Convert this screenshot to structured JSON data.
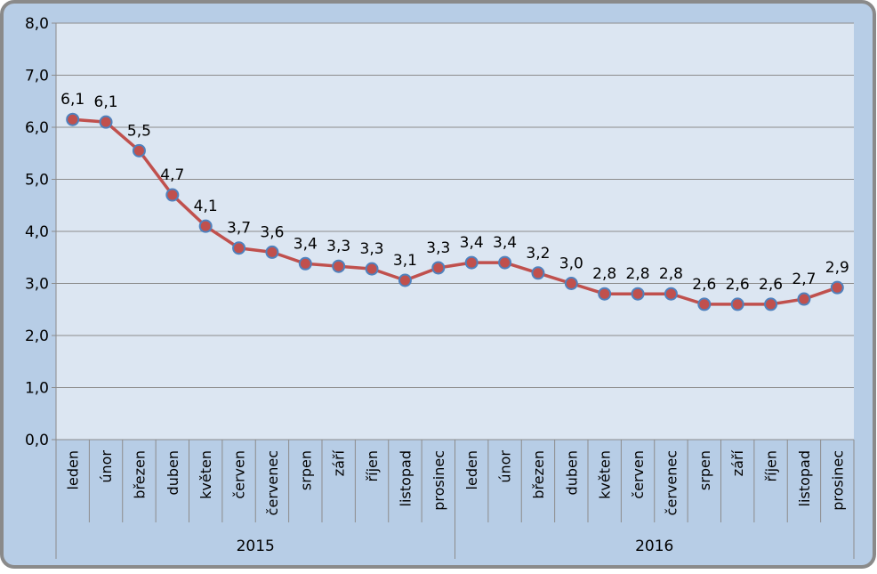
{
  "chart_data": {
    "type": "line",
    "title": "",
    "xlabel": "",
    "ylabel": "",
    "ylim": [
      0,
      8
    ],
    "yticks": [
      "0,0",
      "1,0",
      "2,0",
      "3,0",
      "4,0",
      "5,0",
      "6,0",
      "7,0",
      "8,0"
    ],
    "grid": true,
    "legend": "none",
    "categories": [
      "leden",
      "únor",
      "březen",
      "duben",
      "květen",
      "červen",
      "červenec",
      "srpen",
      "září",
      "říjen",
      "listopad",
      "prosinec",
      "leden",
      "únor",
      "březen",
      "duben",
      "květen",
      "červen",
      "červenec",
      "srpen",
      "září",
      "říjen",
      "listopad",
      "prosinec"
    ],
    "groups": [
      {
        "label": "2015",
        "count": 12
      },
      {
        "label": "2016",
        "count": 12
      }
    ],
    "series": [
      {
        "values": [
          6.15,
          6.1,
          5.55,
          4.7,
          4.1,
          3.68,
          3.6,
          3.38,
          3.33,
          3.28,
          3.06,
          3.3,
          3.4,
          3.4,
          3.2,
          3.0,
          2.8,
          2.8,
          2.8,
          2.6,
          2.6,
          2.6,
          2.7,
          2.92
        ],
        "labels": [
          "6,1",
          "6,1",
          "5,5",
          "4,7",
          "4,1",
          "3,7",
          "3,6",
          "3,4",
          "3,3",
          "3,3",
          "3,1",
          "3,3",
          "3,4",
          "3,4",
          "3,2",
          "3,0",
          "2,8",
          "2,8",
          "2,8",
          "2,6",
          "2,6",
          "2,6",
          "2,7",
          "2,9"
        ]
      }
    ],
    "colors": {
      "frame_outer": "#8a8a8a",
      "frame_fill": "#b7cde6",
      "plot_fill": "#dce6f2",
      "line": "#c0504d",
      "marker_fill": "#c0504d",
      "marker_edge": "#4f81bd",
      "grid": "#8c8c8c"
    }
  }
}
